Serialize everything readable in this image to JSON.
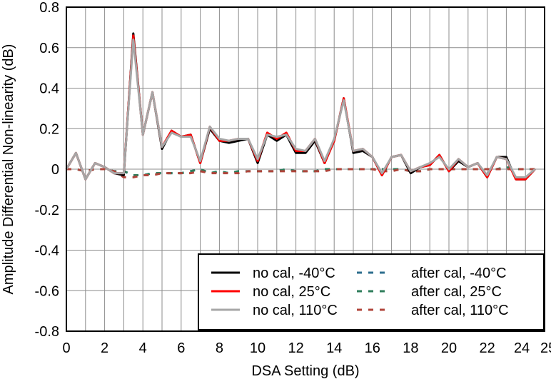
{
  "chart_data": {
    "type": "line",
    "title": "",
    "xlabel": "DSA Setting (dB)",
    "ylabel": "Amplitude Differential Non-linearity (dB)",
    "xlim": [
      0,
      25
    ],
    "ylim": [
      -0.8,
      0.8
    ],
    "x_ticks": [
      0,
      2,
      4,
      6,
      8,
      10,
      12,
      14,
      16,
      18,
      20,
      22,
      24,
      25
    ],
    "x_tick_labels": [
      "0",
      "2",
      "4",
      "6",
      "8",
      "10",
      "12",
      "14",
      "16",
      "18",
      "20",
      "22",
      "24",
      "25"
    ],
    "y_ticks": [
      -0.8,
      -0.6,
      -0.4,
      -0.2,
      0,
      0.2,
      0.4,
      0.6,
      0.8
    ],
    "y_tick_labels": [
      "-0.8",
      "-0.6",
      "-0.4",
      "-0.2",
      "0",
      "0.2",
      "0.4",
      "0.6",
      "0.8"
    ],
    "grid": true,
    "legend_position": "bottom-right",
    "x": [
      0,
      0.5,
      1,
      1.5,
      2,
      2.5,
      3,
      3.5,
      4,
      4.5,
      5,
      5.5,
      6,
      6.5,
      7,
      7.5,
      8,
      8.5,
      9,
      9.5,
      10,
      10.5,
      11,
      11.5,
      12,
      12.5,
      13,
      13.5,
      14,
      14.5,
      15,
      15.5,
      16,
      16.5,
      17,
      17.5,
      18,
      18.5,
      19,
      19.5,
      20,
      20.5,
      21,
      21.5,
      22,
      22.5,
      23,
      23.5,
      24,
      24.5
    ],
    "series": [
      {
        "name": "no cal, -40°C",
        "color": "#000000",
        "dash": "solid",
        "values": [
          0.0,
          0.08,
          -0.05,
          0.03,
          0.01,
          -0.02,
          -0.03,
          0.67,
          0.17,
          0.38,
          0.1,
          0.19,
          0.16,
          0.17,
          0.03,
          0.2,
          0.14,
          0.13,
          0.14,
          0.15,
          0.03,
          0.17,
          0.14,
          0.17,
          0.08,
          0.08,
          0.14,
          0.03,
          0.14,
          0.35,
          0.08,
          0.09,
          0.06,
          -0.03,
          0.06,
          0.07,
          -0.02,
          0.01,
          0.02,
          0.07,
          -0.01,
          0.04,
          0.01,
          0.03,
          -0.04,
          0.06,
          0.06,
          -0.05,
          -0.05,
          0.0
        ]
      },
      {
        "name": "no cal, 25°C",
        "color": "#ff0000",
        "dash": "solid",
        "values": [
          0.0,
          0.08,
          -0.05,
          0.03,
          0.01,
          -0.02,
          -0.02,
          0.66,
          0.17,
          0.38,
          0.11,
          0.19,
          0.16,
          0.17,
          0.03,
          0.21,
          0.14,
          0.14,
          0.15,
          0.15,
          0.04,
          0.18,
          0.15,
          0.18,
          0.09,
          0.09,
          0.15,
          0.03,
          0.14,
          0.35,
          0.09,
          0.1,
          0.06,
          -0.03,
          0.06,
          0.07,
          -0.01,
          0.01,
          0.02,
          0.07,
          -0.01,
          0.05,
          0.01,
          0.03,
          -0.04,
          0.06,
          0.05,
          -0.05,
          -0.05,
          0.0
        ]
      },
      {
        "name": "no cal, 110°C",
        "color": "#a6a6a6",
        "dash": "solid",
        "values": [
          0.0,
          0.08,
          -0.05,
          0.03,
          0.01,
          -0.02,
          -0.02,
          0.64,
          0.17,
          0.38,
          0.11,
          0.18,
          0.16,
          0.16,
          0.04,
          0.21,
          0.15,
          0.14,
          0.15,
          0.15,
          0.05,
          0.17,
          0.16,
          0.17,
          0.1,
          0.09,
          0.15,
          0.04,
          0.15,
          0.34,
          0.09,
          0.1,
          0.06,
          -0.02,
          0.06,
          0.07,
          -0.01,
          0.01,
          0.03,
          0.06,
          0.0,
          0.05,
          0.01,
          0.03,
          -0.03,
          0.06,
          0.05,
          -0.04,
          -0.04,
          0.0
        ]
      },
      {
        "name": "after cal, -40°C",
        "color": "#2e6e8e",
        "dash": "dashed",
        "values": [
          0.0,
          0.0,
          -0.01,
          0.0,
          0.0,
          -0.01,
          -0.01,
          -0.03,
          -0.03,
          -0.02,
          -0.02,
          -0.02,
          -0.02,
          -0.01,
          0.0,
          -0.02,
          -0.01,
          -0.02,
          -0.01,
          -0.01,
          -0.01,
          -0.01,
          -0.01,
          0.0,
          -0.01,
          -0.01,
          -0.01,
          0.0,
          0.0,
          0.0,
          0.0,
          0.0,
          0.0,
          0.0,
          0.0,
          0.0,
          -0.01,
          -0.01,
          0.0,
          0.0,
          0.0,
          0.0,
          0.0,
          0.0,
          0.0,
          0.0,
          0.01,
          0.0,
          0.0,
          0.0
        ]
      },
      {
        "name": "after cal, 25°C",
        "color": "#2e7d5b",
        "dash": "dashed",
        "values": [
          0.0,
          0.0,
          -0.01,
          0.0,
          0.0,
          -0.01,
          -0.01,
          -0.03,
          -0.03,
          -0.02,
          -0.02,
          -0.02,
          -0.02,
          -0.01,
          0.0,
          -0.02,
          -0.01,
          -0.02,
          -0.01,
          -0.01,
          -0.01,
          -0.01,
          -0.01,
          0.0,
          -0.01,
          -0.01,
          -0.01,
          0.0,
          0.0,
          0.0,
          0.0,
          0.0,
          0.0,
          0.0,
          0.0,
          0.0,
          -0.01,
          -0.01,
          0.0,
          0.0,
          0.0,
          0.0,
          0.0,
          0.0,
          0.0,
          0.0,
          0.01,
          0.0,
          0.0,
          0.0
        ]
      },
      {
        "name": "after cal, 110°C",
        "color": "#b0443a",
        "dash": "dashed",
        "values": [
          0.0,
          0.0,
          -0.01,
          0.0,
          0.0,
          -0.01,
          -0.04,
          -0.04,
          -0.03,
          -0.03,
          -0.02,
          -0.02,
          -0.02,
          -0.02,
          -0.01,
          -0.02,
          -0.02,
          -0.02,
          -0.02,
          -0.01,
          -0.01,
          -0.01,
          -0.01,
          -0.01,
          -0.01,
          -0.01,
          -0.01,
          -0.01,
          0.0,
          0.0,
          0.0,
          0.0,
          0.0,
          -0.01,
          -0.01,
          0.0,
          -0.01,
          -0.01,
          0.0,
          0.0,
          0.0,
          0.0,
          0.0,
          0.0,
          0.0,
          0.0,
          0.0,
          0.0,
          0.0,
          0.0
        ]
      }
    ]
  }
}
